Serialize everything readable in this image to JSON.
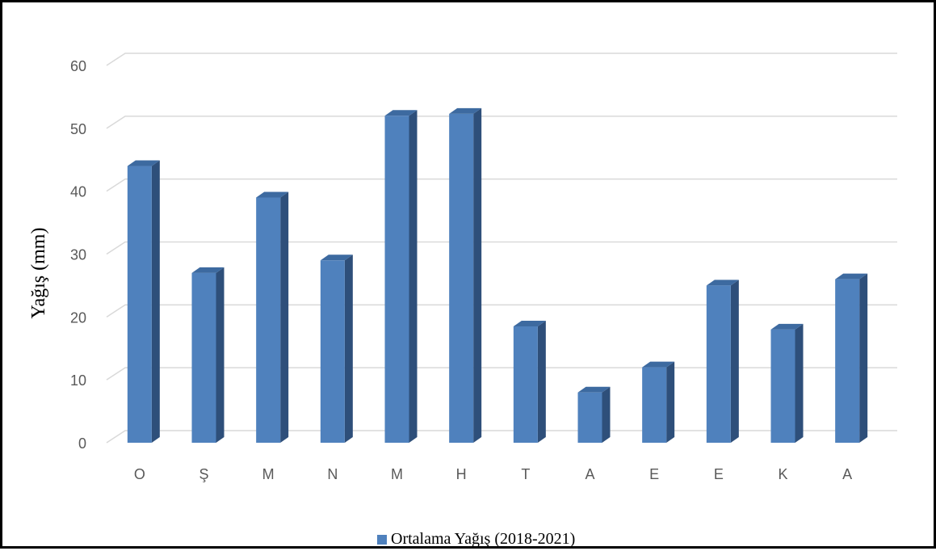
{
  "chart_data": {
    "type": "bar",
    "style": "3d-column",
    "categories": [
      "O",
      "Ş",
      "M",
      "N",
      "M",
      "H",
      "T",
      "A",
      "E",
      "E",
      "K",
      "A"
    ],
    "series": [
      {
        "name": "Ortalama Yağış (2018-2021)",
        "values": [
          44,
          27,
          39,
          29,
          52,
          52.3,
          18.5,
          8,
          12,
          25,
          18,
          26
        ]
      }
    ],
    "title": "",
    "xlabel": "",
    "ylabel": "Yağış (mm)",
    "ylim": [
      0,
      60
    ],
    "yticks": [
      0,
      10,
      20,
      30,
      40,
      50,
      60
    ],
    "grid": true,
    "legend_position": "bottom",
    "colors": {
      "bar_front": "#4f81bd",
      "bar_side": "#2e4f7a",
      "bar_top": "#3d6aa0",
      "grid": "#d9d9d9",
      "tick_label": "#595959"
    }
  }
}
